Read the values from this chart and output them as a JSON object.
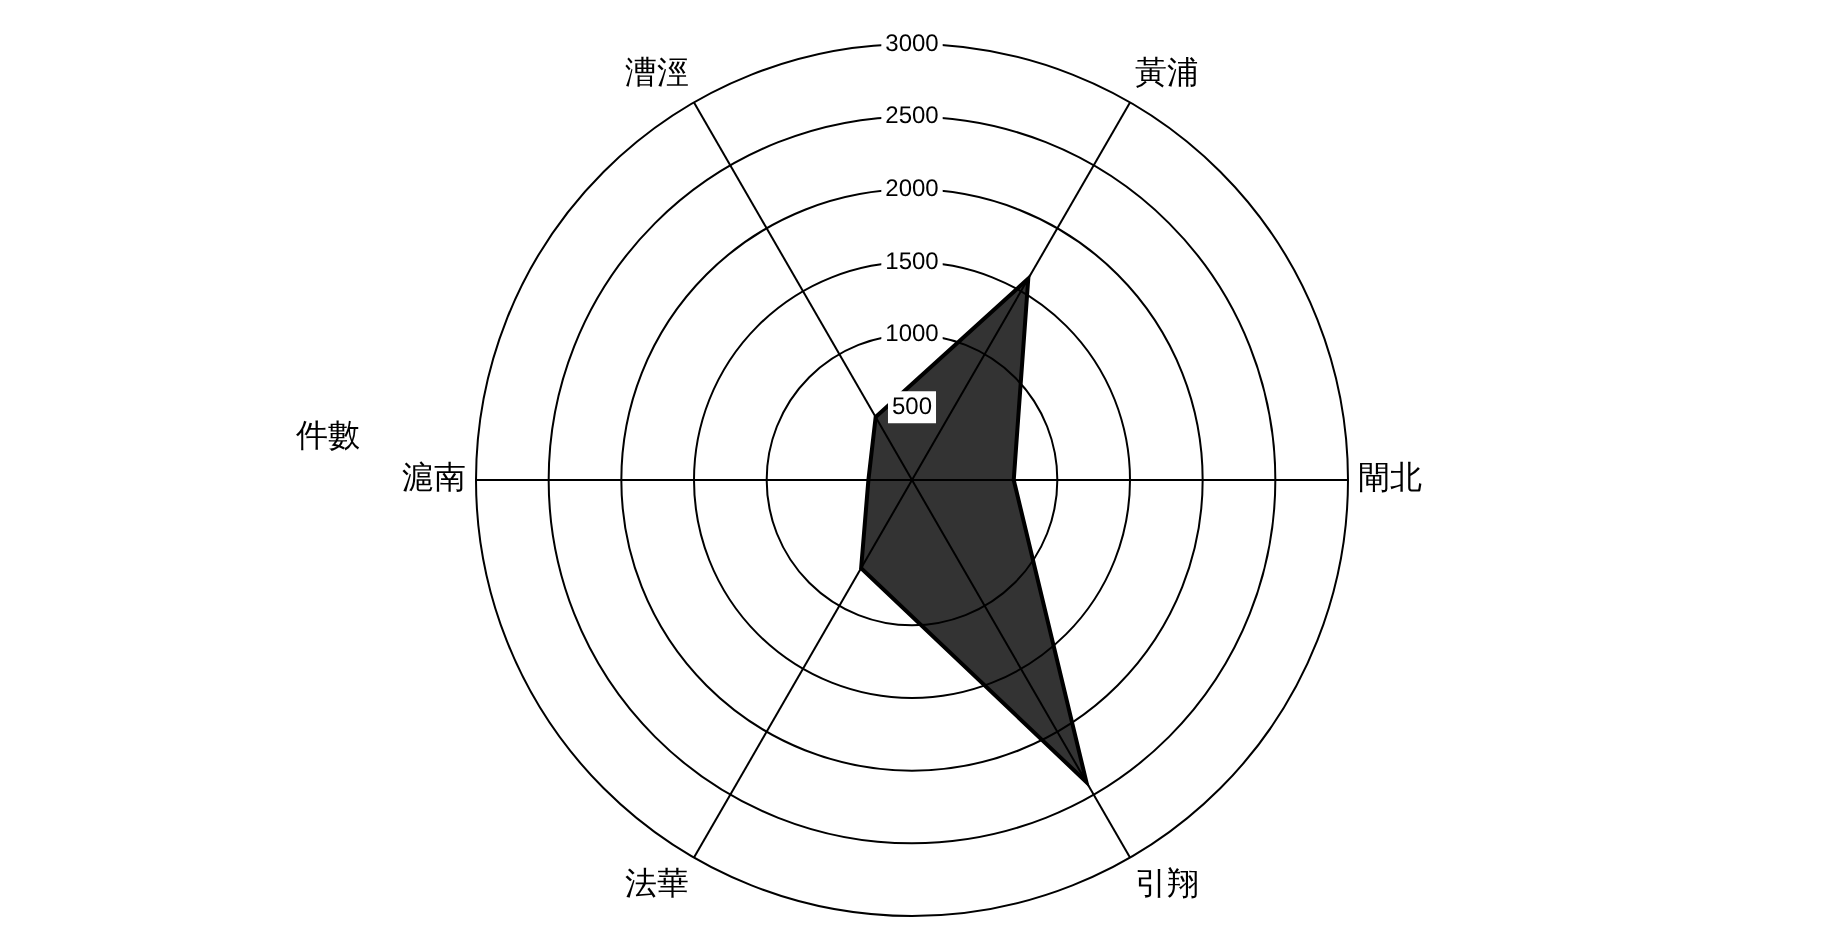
{
  "chart_data": {
    "type": "radar",
    "ylabel": "件數",
    "categories": [
      "黃浦",
      "閘北",
      "引翔",
      "法華",
      "滬南",
      "漕涇"
    ],
    "series": [
      {
        "color": "#000000",
        "values": [
          1600,
          700,
          2400,
          700,
          300,
          500
        ]
      }
    ],
    "ylim": [
      0,
      3000
    ],
    "yticks": [
      500,
      1000,
      1500,
      2000,
      2500,
      3000
    ],
    "grid": true,
    "marker": "none",
    "legend": false
  }
}
